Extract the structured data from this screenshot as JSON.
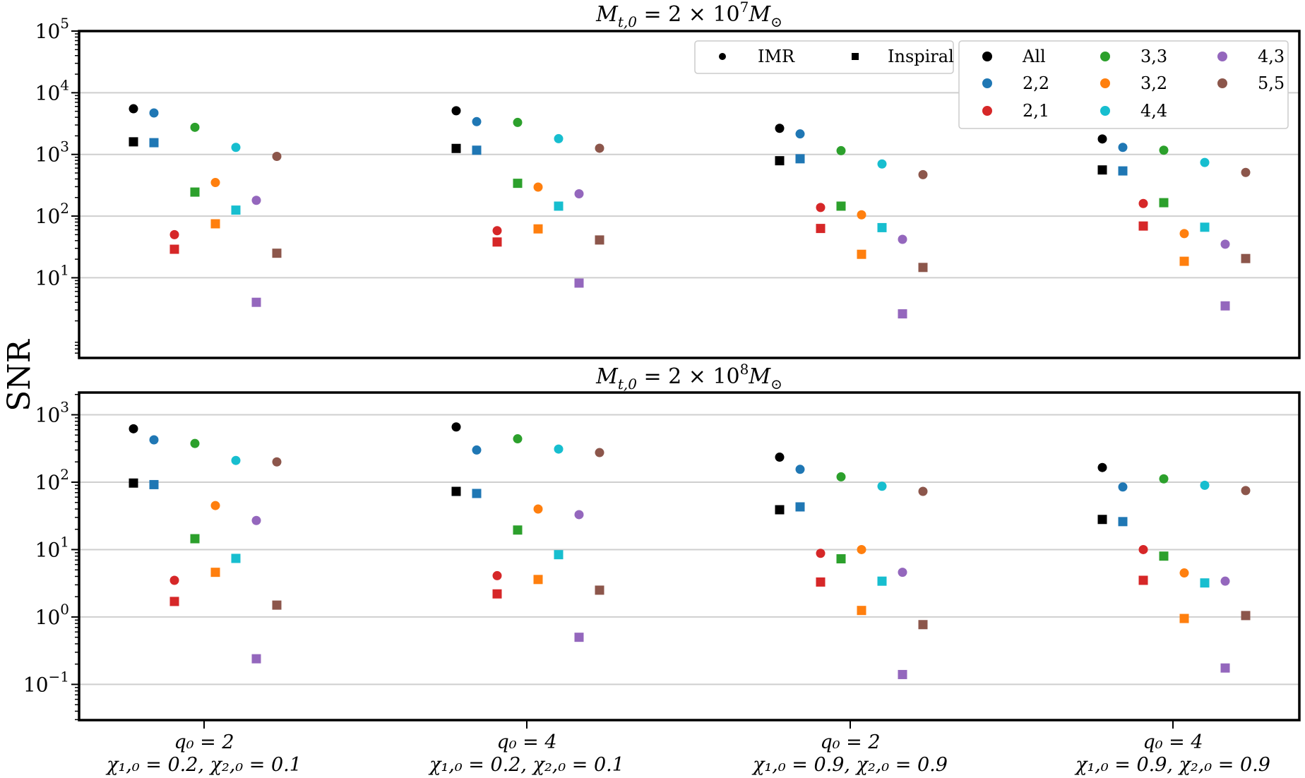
{
  "chart_data": {
    "type": "scatter",
    "ylabel": "SNR",
    "yscale": "log",
    "categories": [
      {
        "line1": "q₀ = 2",
        "line2": "χ₁,₀ = 0.2, χ₂,₀ = 0.1"
      },
      {
        "line1": "q₀ = 4",
        "line2": "χ₁,₀ = 0.2, χ₂,₀ = 0.1"
      },
      {
        "line1": "q₀ = 2",
        "line2": "χ₁,₀ = 0.9, χ₂,₀ = 0.9"
      },
      {
        "line1": "q₀ = 4",
        "line2": "χ₁,₀ = 0.9, χ₂,₀ = 0.9"
      }
    ],
    "series": [
      {
        "name": "All",
        "color": "#000000"
      },
      {
        "name": "2,2",
        "color": "#1f77b4"
      },
      {
        "name": "2,1",
        "color": "#d62728"
      },
      {
        "name": "3,3",
        "color": "#2ca02c"
      },
      {
        "name": "3,2",
        "color": "#ff7f0e"
      },
      {
        "name": "4,4",
        "color": "#17becf"
      },
      {
        "name": "4,3",
        "color": "#9467bd"
      },
      {
        "name": "5,5",
        "color": "#8c564b"
      }
    ],
    "marker_legend": [
      {
        "name": "IMR",
        "marker": "circle"
      },
      {
        "name": "Inspiral",
        "marker": "square"
      }
    ],
    "panels": [
      {
        "title": "M_t,0 = 2 × 10^7 M_⊙",
        "title_main": "M",
        "title_sub": "t,0",
        "title_mid": " = 2 × 10",
        "title_sup": "7",
        "title_end": "M",
        "title_end_sub": "⊙",
        "ylim_exp": [
          -0.3,
          5.0
        ],
        "yticks": [
          {
            "base": "10",
            "exp": "1"
          },
          {
            "base": "10",
            "exp": "2"
          },
          {
            "base": "10",
            "exp": "3"
          },
          {
            "base": "10",
            "exp": "4"
          },
          {
            "base": "10",
            "exp": "5"
          }
        ],
        "ytick_exps": [
          1,
          2,
          3,
          4,
          5
        ],
        "grid": true,
        "imr": [
          [
            5500,
            4700,
            50,
            2750,
            350,
            1300,
            180,
            930
          ],
          [
            5100,
            3400,
            58,
            3300,
            295,
            1800,
            230,
            1260
          ],
          [
            2650,
            2150,
            138,
            1150,
            105,
            700,
            42,
            470
          ],
          [
            1780,
            1300,
            160,
            1170,
            52,
            740,
            35,
            510
          ]
        ],
        "inspiral": [
          [
            1600,
            1550,
            29,
            245,
            75,
            125,
            4.0,
            25
          ],
          [
            1250,
            1170,
            38,
            340,
            62,
            145,
            8.2,
            41
          ],
          [
            790,
            850,
            63,
            145,
            24,
            65,
            2.6,
            14.7
          ],
          [
            560,
            540,
            69,
            165,
            18.5,
            66,
            3.5,
            20.5
          ]
        ]
      },
      {
        "title": "M_t,0 = 2 × 10^8 M_⊙",
        "title_main": "M",
        "title_sub": "t,0",
        "title_mid": " = 2 × 10",
        "title_sup": "8",
        "title_end": "M",
        "title_end_sub": "⊙",
        "ylim_exp": [
          -1.53,
          3.33
        ],
        "yticks": [
          {
            "base": "10",
            "exp": "−1"
          },
          {
            "base": "10",
            "exp": "0"
          },
          {
            "base": "10",
            "exp": "1"
          },
          {
            "base": "10",
            "exp": "2"
          },
          {
            "base": "10",
            "exp": "3"
          }
        ],
        "ytick_exps": [
          -1,
          0,
          1,
          2,
          3
        ],
        "grid": true,
        "imr": [
          [
            620,
            425,
            3.5,
            375,
            45,
            210,
            27,
            200
          ],
          [
            660,
            300,
            4.1,
            440,
            40,
            310,
            33,
            275
          ],
          [
            235,
            155,
            8.8,
            120,
            10,
            87,
            4.6,
            73
          ],
          [
            165,
            85,
            10,
            112,
            4.5,
            90,
            3.4,
            75
          ]
        ],
        "inspiral": [
          [
            97,
            92,
            1.7,
            14.5,
            4.6,
            7.4,
            0.24,
            1.5
          ],
          [
            73,
            68,
            2.2,
            19.5,
            3.6,
            8.4,
            0.5,
            2.5
          ],
          [
            39,
            43,
            3.3,
            7.3,
            1.25,
            3.4,
            0.14,
            0.77
          ],
          [
            28,
            26,
            3.5,
            8.0,
            0.95,
            3.2,
            0.175,
            1.05
          ]
        ]
      }
    ]
  }
}
